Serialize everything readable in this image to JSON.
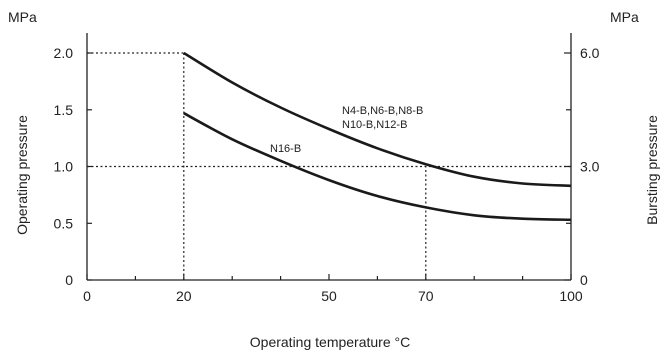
{
  "chart_data": {
    "type": "line",
    "xlabel": "Operating temperature  °C",
    "ylabel": "Operating pressure",
    "y2label": "Bursting pressure",
    "yunit": "MPa",
    "y2unit": "MPa",
    "xlim": [
      0,
      100
    ],
    "ylim": [
      0,
      2.3
    ],
    "xticks_major": [
      0,
      20,
      50,
      70,
      100
    ],
    "xticks_minor": [
      10,
      30,
      40,
      60,
      80,
      90
    ],
    "yticks": [
      0,
      0.5,
      1.0,
      1.5,
      2.0
    ],
    "ytick_labels": [
      "0",
      "0.5",
      "1.0",
      "1.5",
      "2.0"
    ],
    "y2ticks": [
      {
        "value": 0,
        "label": "0"
      },
      {
        "value": 1.0,
        "label": "3.0"
      },
      {
        "value": 2.0,
        "label": "6.0"
      }
    ],
    "y2ticks_minor": [
      0.5,
      1.5
    ],
    "grid": false,
    "series": [
      {
        "name": "N4-B,N6-B,N8-B\nN10-B,N12-B",
        "x": [
          20,
          30,
          40,
          50,
          60,
          70,
          80,
          90,
          100
        ],
        "y": [
          2.0,
          1.74,
          1.52,
          1.33,
          1.16,
          1.02,
          0.91,
          0.85,
          0.83
        ]
      },
      {
        "name": "N16-B",
        "x": [
          20,
          30,
          40,
          50,
          60,
          70,
          80,
          90,
          100
        ],
        "y": [
          1.47,
          1.24,
          1.05,
          0.88,
          0.74,
          0.64,
          0.57,
          0.54,
          0.53
        ]
      }
    ],
    "reference_lines": [
      {
        "type": "h",
        "y": 2.0,
        "x_to": 20
      },
      {
        "type": "v",
        "x": 20,
        "y_to": 2.0
      },
      {
        "type": "h",
        "y": 1.0,
        "x_to": 100
      },
      {
        "type": "v",
        "x": 70,
        "y_to": 1.0
      }
    ]
  }
}
